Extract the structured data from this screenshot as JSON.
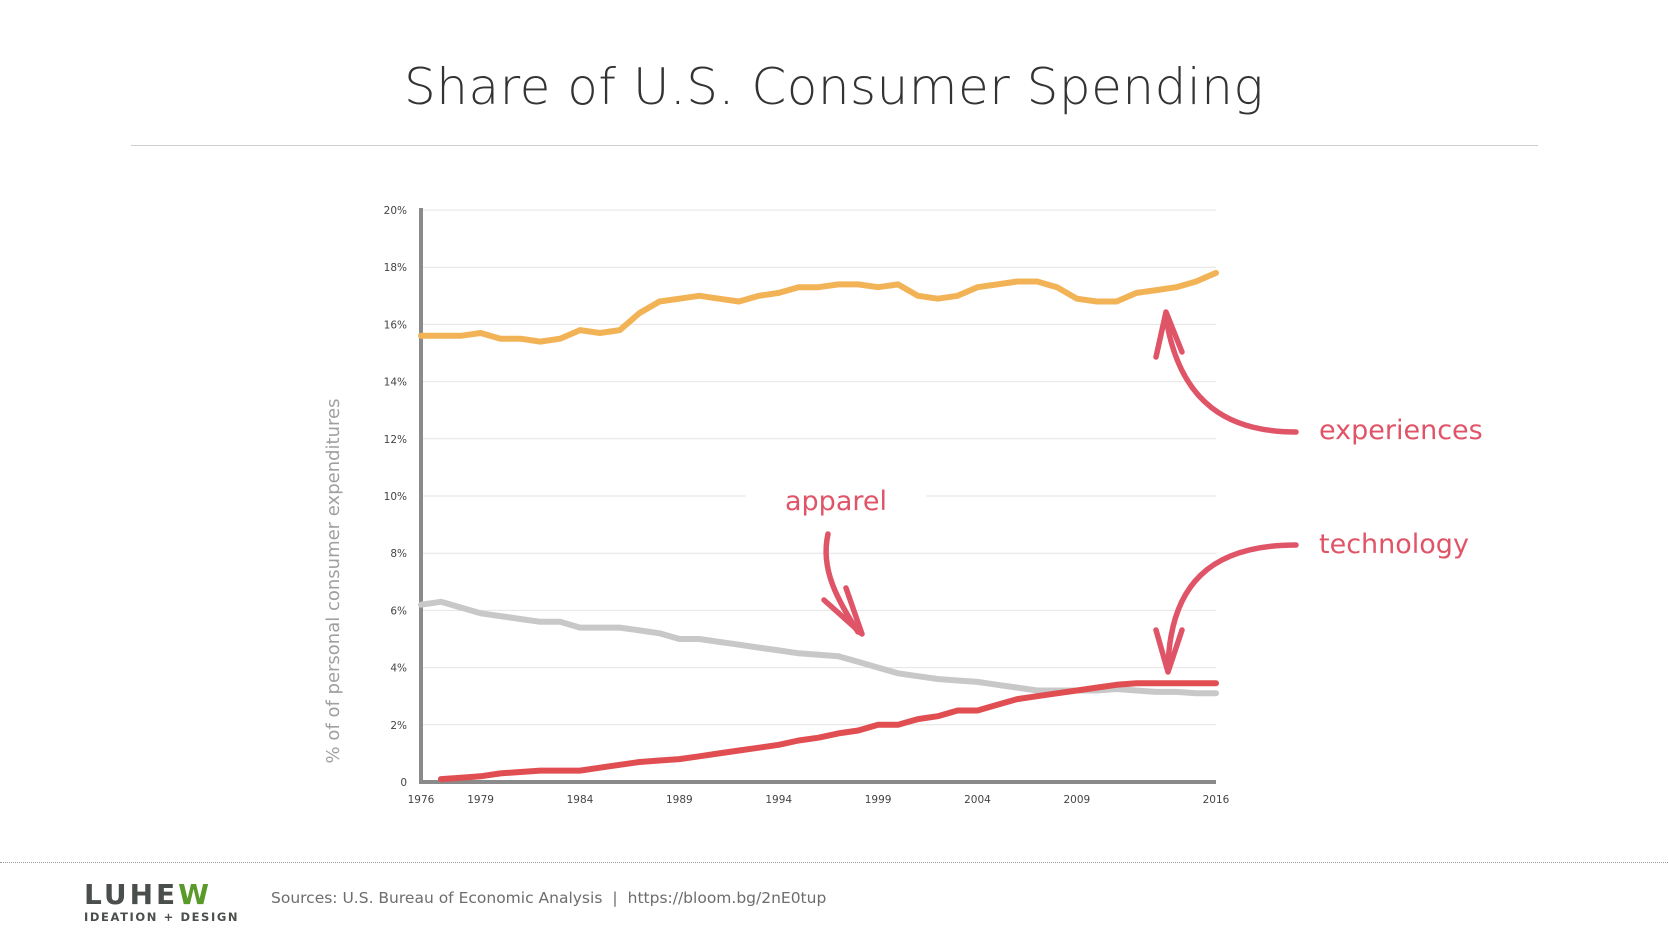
{
  "slide": {
    "title": "Share of U.S. Consumer Spending",
    "footer": {
      "logo_main_a": "LUHE",
      "logo_main_b": "W",
      "logo_sub": "IDEATION + DESIGN",
      "sources": "Sources: U.S. Bureau of Economic Analysis",
      "separator": "|",
      "link": "https://bloom.bg/2nE0tup"
    }
  },
  "colors": {
    "experiences": "#f2b357",
    "apparel": "#c8c8c8",
    "technology": "#e04e52",
    "annotation": "#e05468",
    "grid": "#e4e4e4",
    "axis": "#8a8a8a",
    "ylabel": "#a0a0a0"
  },
  "chart_data": {
    "type": "line",
    "title": "Share of U.S. Consumer Spending",
    "xlabel": "",
    "ylabel": "% of of personal consumer expenditures",
    "xlim": [
      1976,
      2016
    ],
    "ylim": [
      0,
      20
    ],
    "grid": true,
    "x_ticks": [
      "1976",
      "1979",
      "1984",
      "1989",
      "1994",
      "1999",
      "2004",
      "2009",
      "2016"
    ],
    "y_ticks": [
      "0",
      "2%",
      "4%",
      "6%",
      "8%",
      "10%",
      "12%",
      "14%",
      "16%",
      "18%",
      "20%"
    ],
    "series": [
      {
        "name": "experiences",
        "x": [
          1976,
          1977,
          1978,
          1979,
          1980,
          1981,
          1982,
          1983,
          1984,
          1985,
          1986,
          1987,
          1988,
          1989,
          1990,
          1991,
          1992,
          1993,
          1994,
          1995,
          1996,
          1997,
          1998,
          1999,
          2000,
          2001,
          2002,
          2003,
          2004,
          2005,
          2006,
          2007,
          2008,
          2009,
          2010,
          2011,
          2012,
          2013,
          2014,
          2015,
          2016
        ],
        "values": [
          15.6,
          15.6,
          15.6,
          15.7,
          15.5,
          15.5,
          15.4,
          15.5,
          15.8,
          15.7,
          15.8,
          16.4,
          16.8,
          16.9,
          17.0,
          16.9,
          16.8,
          17.0,
          17.1,
          17.3,
          17.3,
          17.4,
          17.4,
          17.3,
          17.4,
          17.0,
          16.9,
          17.0,
          17.3,
          17.4,
          17.5,
          17.5,
          17.3,
          16.9,
          16.8,
          16.8,
          17.1,
          17.2,
          17.3,
          17.5,
          17.8
        ]
      },
      {
        "name": "apparel",
        "x": [
          1976,
          1977,
          1978,
          1979,
          1980,
          1981,
          1982,
          1983,
          1984,
          1985,
          1986,
          1987,
          1988,
          1989,
          1990,
          1991,
          1992,
          1993,
          1994,
          1995,
          1996,
          1997,
          1998,
          1999,
          2000,
          2001,
          2002,
          2003,
          2004,
          2005,
          2006,
          2007,
          2008,
          2009,
          2010,
          2011,
          2012,
          2013,
          2014,
          2015,
          2016
        ],
        "values": [
          6.2,
          6.3,
          6.1,
          5.9,
          5.8,
          5.7,
          5.6,
          5.6,
          5.4,
          5.4,
          5.4,
          5.3,
          5.2,
          5.0,
          5.0,
          4.9,
          4.8,
          4.7,
          4.6,
          4.5,
          4.45,
          4.4,
          4.2,
          4.0,
          3.8,
          3.7,
          3.6,
          3.55,
          3.5,
          3.4,
          3.3,
          3.2,
          3.2,
          3.2,
          3.2,
          3.25,
          3.2,
          3.15,
          3.15,
          3.1,
          3.1
        ]
      },
      {
        "name": "technology",
        "x": [
          1977,
          1978,
          1979,
          1980,
          1981,
          1982,
          1983,
          1984,
          1985,
          1986,
          1987,
          1988,
          1989,
          1990,
          1991,
          1992,
          1993,
          1994,
          1995,
          1996,
          1997,
          1998,
          1999,
          2000,
          2001,
          2002,
          2003,
          2004,
          2005,
          2006,
          2007,
          2008,
          2009,
          2010,
          2011,
          2012,
          2013,
          2014,
          2015,
          2016
        ],
        "values": [
          0.1,
          0.15,
          0.2,
          0.3,
          0.35,
          0.4,
          0.4,
          0.4,
          0.5,
          0.6,
          0.7,
          0.75,
          0.8,
          0.9,
          1.0,
          1.1,
          1.2,
          1.3,
          1.45,
          1.55,
          1.7,
          1.8,
          2.0,
          2.0,
          2.2,
          2.3,
          2.5,
          2.5,
          2.7,
          2.9,
          3.0,
          3.1,
          3.2,
          3.3,
          3.4,
          3.45,
          3.45,
          3.45,
          3.45,
          3.45
        ]
      }
    ],
    "annotations": [
      {
        "label": "experiences",
        "target": "experiences"
      },
      {
        "label": "apparel",
        "target": "apparel"
      },
      {
        "label": "technology",
        "target": "technology"
      }
    ]
  }
}
